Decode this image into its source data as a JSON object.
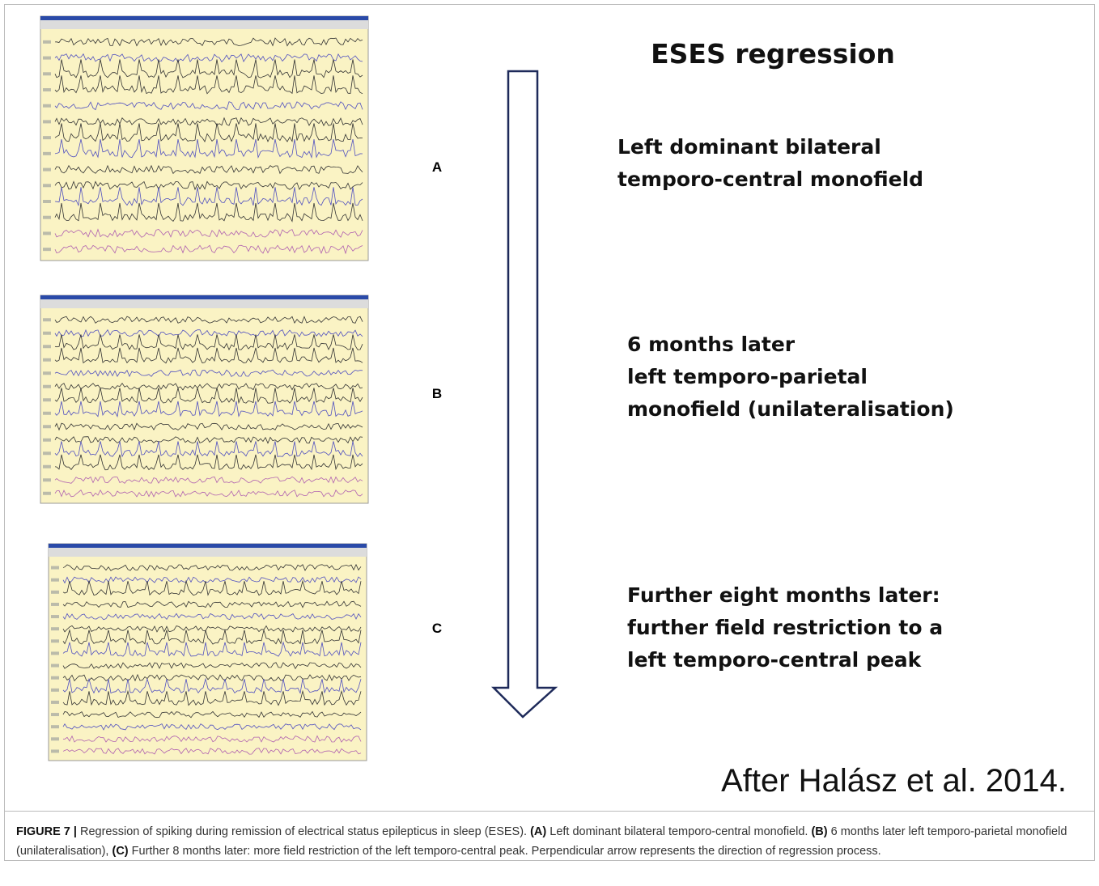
{
  "figure": {
    "title": "ESES regression",
    "panels": [
      {
        "label": "A",
        "lines": [
          "Left dominant bilateral",
          "temporo-central monofield"
        ]
      },
      {
        "label": "B",
        "lines": [
          "6 months later",
          "left temporo-parietal",
          "monofield (unilateralisation)"
        ]
      },
      {
        "label": "C",
        "lines": [
          "Further eight months later:",
          "further field restriction to a",
          "left temporo-central peak"
        ]
      }
    ],
    "attribution": "After Halász et al. 2014."
  },
  "caption": {
    "parts": [
      "FIGURE 7 |",
      " Regression of spiking during remission of electrical status epilepticus in sleep (ESES). ",
      "(A)",
      " Left dominant bilateral temporo-central monofield. ",
      "(B)",
      " 6 months later left temporo-parietal monofield (unilateralisation), ",
      "(C)",
      " Further 8 months later: more field restriction of the left temporo-central peak. Perpendicular arrow represents the direction of regression process."
    ]
  }
}
